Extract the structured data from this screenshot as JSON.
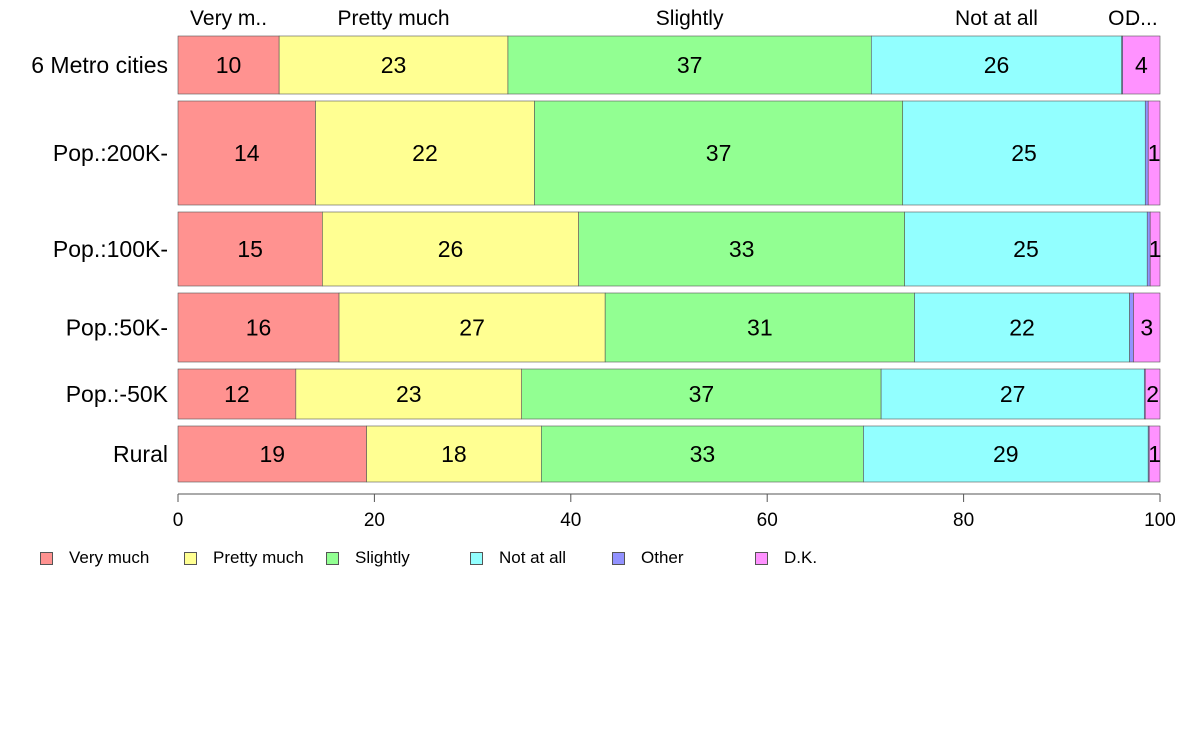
{
  "chart_data": {
    "type": "bar",
    "orientation": "horizontal",
    "stacked": true,
    "categories": [
      "6 Metro cities",
      "Pop.:200K-",
      "Pop.:100K-",
      "Pop.:50K-",
      "Pop.:-50K",
      "Rural"
    ],
    "series": [
      {
        "name": "Very much",
        "top_label": "Very m..",
        "color": "#ff9290",
        "values": [
          10.3,
          14.0,
          14.7,
          16.4,
          12.0,
          19.2
        ],
        "labels": [
          "10",
          "14",
          "15",
          "16",
          "12",
          "19"
        ]
      },
      {
        "name": "Pretty much",
        "top_label": "Pretty much",
        "color": "#ffff92",
        "values": [
          23.3,
          22.3,
          26.1,
          27.1,
          23.0,
          17.8
        ],
        "labels": [
          "23",
          "22",
          "26",
          "27",
          "23",
          "18"
        ]
      },
      {
        "name": "Slightly",
        "top_label": "Slightly",
        "color": "#92ff92",
        "values": [
          37.0,
          37.5,
          33.2,
          31.5,
          36.6,
          32.8
        ],
        "labels": [
          "37",
          "37",
          "33",
          "31",
          "37",
          "33"
        ]
      },
      {
        "name": "Not at all",
        "top_label": "Not at all",
        "color": "#92ffff",
        "values": [
          25.5,
          24.7,
          24.7,
          21.9,
          26.8,
          29.0
        ],
        "labels": [
          "26",
          "25",
          "25",
          "22",
          "27",
          "29"
        ]
      },
      {
        "name": "Other",
        "top_label": "O..",
        "color": "#9292ff",
        "values": [
          0.1,
          0.3,
          0.3,
          0.4,
          0.1,
          0.1
        ],
        "labels": [
          "",
          "",
          "",
          "",
          "",
          ""
        ]
      },
      {
        "name": "D.K.",
        "top_label": "D...",
        "color": "#ff92ff",
        "values": [
          3.8,
          1.2,
          1.0,
          2.7,
          1.5,
          1.1
        ],
        "labels": [
          "4",
          "1",
          "1",
          "3",
          "2",
          "1"
        ]
      }
    ],
    "xlim": [
      0,
      100
    ],
    "xticks": [
      0,
      20,
      40,
      60,
      80,
      100
    ],
    "title": "",
    "xlabel": "",
    "ylabel": "",
    "legend_position": "bottom"
  }
}
